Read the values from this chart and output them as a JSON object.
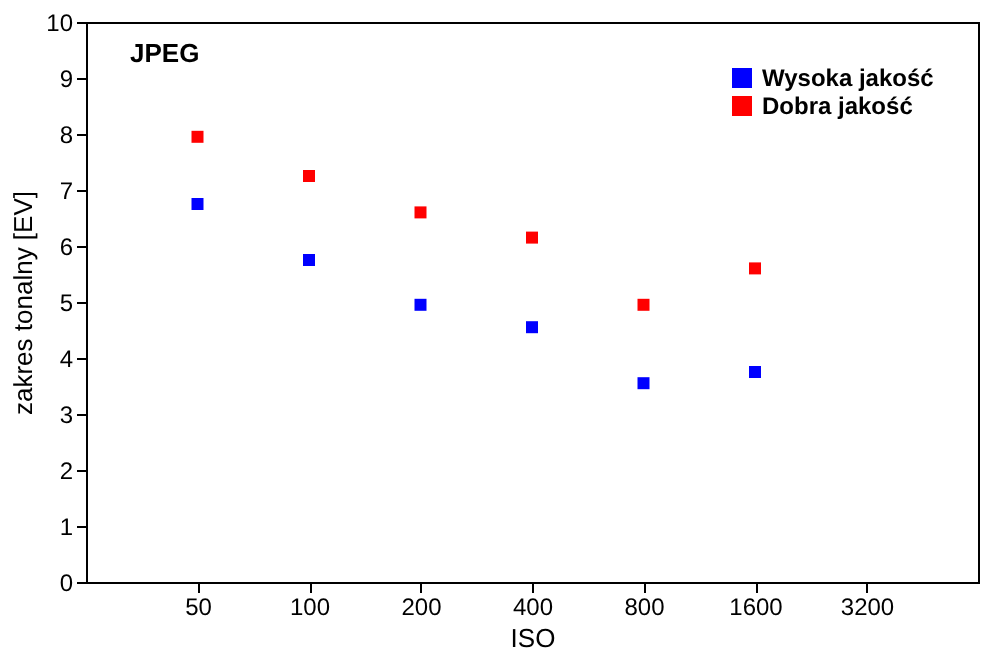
{
  "chart_data": {
    "type": "scatter",
    "xlabel": "ISO",
    "ylabel": "zakres tonalny [EV]",
    "categories": [
      "50",
      "100",
      "200",
      "400",
      "800",
      "1600",
      "3200"
    ],
    "series": [
      {
        "name": "Wysoka jakość",
        "color": "#0000ff",
        "values": [
          6.75,
          5.75,
          4.95,
          4.55,
          3.55,
          3.75,
          null
        ]
      },
      {
        "name": "Dobra jakość",
        "color": "#ff0000",
        "values": [
          7.95,
          7.25,
          6.6,
          6.15,
          4.95,
          5.6,
          null
        ]
      }
    ],
    "ylim": [
      0,
      10
    ],
    "yticks": [
      0,
      1,
      2,
      3,
      4,
      5,
      6,
      7,
      8,
      9,
      10
    ],
    "annotations": [
      "JPEG"
    ],
    "legend": "top right",
    "marker": "square",
    "grid": false
  }
}
